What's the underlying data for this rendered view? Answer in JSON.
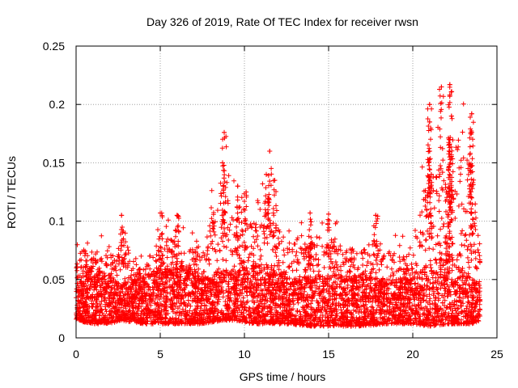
{
  "chart_data": {
    "type": "scatter",
    "title": "Day 326 of 2019, Rate Of TEC Index for receiver rwsn",
    "xlabel": "GPS time / hours",
    "ylabel": "ROTI / TECUs",
    "xlim": [
      0,
      25
    ],
    "ylim": [
      0,
      0.25
    ],
    "xticks": [
      0,
      5,
      10,
      15,
      20,
      25
    ],
    "yticks": [
      0,
      0.05,
      0.1,
      0.15,
      0.2,
      0.25
    ],
    "xtick_labels": [
      "0",
      "5",
      "10",
      "15",
      "20",
      "25"
    ],
    "ytick_labels": [
      "0",
      "0.05",
      "0.1",
      "0.15",
      "0.2",
      "0.25"
    ],
    "grid": true,
    "marker": "+",
    "color": "#ff0000",
    "series": [
      {
        "name": "ROTI",
        "points_note": "dense scatter, ~1 sample per ~30s per satellite",
        "envelope": [
          {
            "x": 0.0,
            "low": 0.015,
            "mid": 0.03,
            "high": 0.09
          },
          {
            "x": 1.0,
            "low": 0.012,
            "mid": 0.035,
            "high": 0.09
          },
          {
            "x": 2.0,
            "low": 0.012,
            "mid": 0.03,
            "high": 0.085
          },
          {
            "x": 2.7,
            "low": 0.015,
            "mid": 0.03,
            "high": 0.105
          },
          {
            "x": 4.0,
            "low": 0.012,
            "mid": 0.03,
            "high": 0.07
          },
          {
            "x": 5.0,
            "low": 0.012,
            "mid": 0.035,
            "high": 0.105
          },
          {
            "x": 6.0,
            "low": 0.012,
            "mid": 0.035,
            "high": 0.1
          },
          {
            "x": 7.5,
            "low": 0.012,
            "mid": 0.03,
            "high": 0.085
          },
          {
            "x": 8.7,
            "low": 0.015,
            "mid": 0.035,
            "high": 0.176
          },
          {
            "x": 9.5,
            "low": 0.015,
            "mid": 0.035,
            "high": 0.13
          },
          {
            "x": 10.5,
            "low": 0.012,
            "mid": 0.035,
            "high": 0.12
          },
          {
            "x": 11.5,
            "low": 0.012,
            "mid": 0.035,
            "high": 0.16
          },
          {
            "x": 12.5,
            "low": 0.012,
            "mid": 0.03,
            "high": 0.1
          },
          {
            "x": 14.0,
            "low": 0.01,
            "mid": 0.03,
            "high": 0.107
          },
          {
            "x": 15.5,
            "low": 0.01,
            "mid": 0.03,
            "high": 0.1
          },
          {
            "x": 17.0,
            "low": 0.01,
            "mid": 0.03,
            "high": 0.09
          },
          {
            "x": 18.5,
            "low": 0.012,
            "mid": 0.03,
            "high": 0.1
          },
          {
            "x": 20.0,
            "low": 0.012,
            "mid": 0.03,
            "high": 0.08
          },
          {
            "x": 21.0,
            "low": 0.01,
            "mid": 0.035,
            "high": 0.2
          },
          {
            "x": 22.2,
            "low": 0.012,
            "mid": 0.04,
            "high": 0.217
          },
          {
            "x": 23.5,
            "low": 0.012,
            "mid": 0.03,
            "high": 0.192
          },
          {
            "x": 24.0,
            "low": 0.015,
            "mid": 0.03,
            "high": 0.085
          }
        ],
        "peaks": [
          {
            "x": 8.8,
            "y": 0.176
          },
          {
            "x": 8.7,
            "y": 0.15
          },
          {
            "x": 9.6,
            "y": 0.13
          },
          {
            "x": 10.1,
            "y": 0.125
          },
          {
            "x": 11.5,
            "y": 0.16
          },
          {
            "x": 11.8,
            "y": 0.135
          },
          {
            "x": 11.3,
            "y": 0.14
          },
          {
            "x": 13.9,
            "y": 0.107
          },
          {
            "x": 15.0,
            "y": 0.106
          },
          {
            "x": 17.8,
            "y": 0.105
          },
          {
            "x": 21.0,
            "y": 0.2
          },
          {
            "x": 21.0,
            "y": 0.185
          },
          {
            "x": 21.0,
            "y": 0.16
          },
          {
            "x": 21.1,
            "y": 0.14
          },
          {
            "x": 21.7,
            "y": 0.215
          },
          {
            "x": 22.2,
            "y": 0.217
          },
          {
            "x": 22.2,
            "y": 0.208
          },
          {
            "x": 22.3,
            "y": 0.19
          },
          {
            "x": 22.2,
            "y": 0.17
          },
          {
            "x": 22.2,
            "y": 0.155
          },
          {
            "x": 22.3,
            "y": 0.126
          },
          {
            "x": 22.0,
            "y": 0.125
          },
          {
            "x": 23.5,
            "y": 0.192
          },
          {
            "x": 23.5,
            "y": 0.176
          },
          {
            "x": 23.4,
            "y": 0.148
          },
          {
            "x": 23.5,
            "y": 0.12
          },
          {
            "x": 2.7,
            "y": 0.105
          },
          {
            "x": 5.0,
            "y": 0.107
          },
          {
            "x": 6.0,
            "y": 0.105
          }
        ]
      }
    ]
  }
}
